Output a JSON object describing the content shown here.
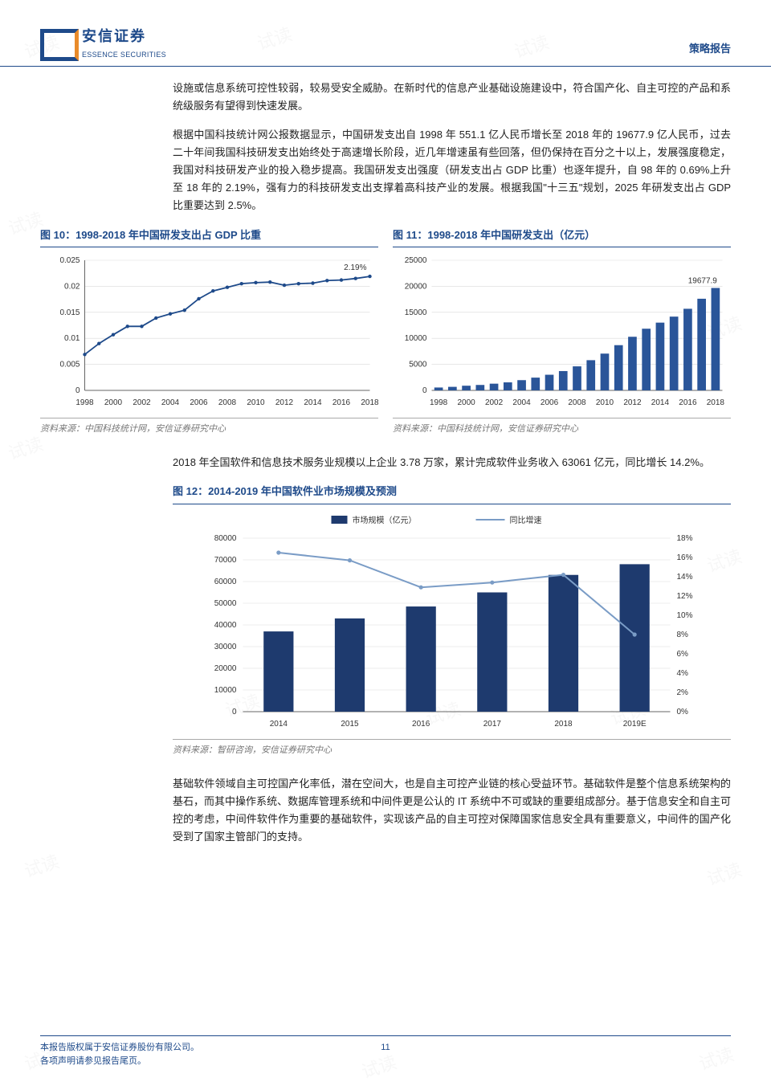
{
  "header": {
    "brand_cn": "安信证券",
    "brand_en": "ESSENCE SECURITIES",
    "doc_type": "策略报告"
  },
  "paragraphs": {
    "p1": "设施或信息系统可控性较弱，较易受安全威胁。在新时代的信息产业基础设施建设中，符合国产化、自主可控的产品和系统级服务有望得到快速发展。",
    "p2": "根据中国科技统计网公报数据显示，中国研发支出自 1998 年 551.1 亿人民币增长至 2018 年的 19677.9 亿人民币，过去二十年间我国科技研发支出始终处于高速增长阶段，近几年增速虽有些回落，但仍保持在百分之十以上，发展强度稳定，我国对科技研发产业的投入稳步提高。我国研发支出强度（研发支出占 GDP 比重）也逐年提升，自 98 年的 0.69%上升至 18 年的 2.19%，强有力的科技研发支出支撑着高科技产业的发展。根据我国\"十三五\"规划，2025 年研发支出占 GDP 比重要达到 2.5%。",
    "p3": "2018 年全国软件和信息技术服务业规模以上企业 3.78 万家，累计完成软件业务收入 63061 亿元，同比增长 14.2%。",
    "p4": "基础软件领域自主可控国产化率低，潜在空间大，也是自主可控产业链的核心受益环节。基础软件是整个信息系统架构的基石，而其中操作系统、数据库管理系统和中间件更是公认的 IT 系统中不可或缺的重要组成部分。基于信息安全和自主可控的考虑，中间件软件作为重要的基础软件，实现该产品的自主可控对保障国家信息安全具有重要意义，中间件的国产化受到了国家主管部门的支持。"
  },
  "chart10": {
    "title": "图 10：1998-2018 年中国研发支出占 GDP 比重",
    "type": "line",
    "x_labels": [
      "1998",
      "2000",
      "2002",
      "2004",
      "2006",
      "2008",
      "2010",
      "2012",
      "2014",
      "2016",
      "2018"
    ],
    "y_ticks": [
      0,
      0.005,
      0.01,
      0.015,
      0.02,
      0.025
    ],
    "y_tick_labels": [
      "0",
      "0.005",
      "0.01",
      "0.015",
      "0.02",
      "0.025"
    ],
    "values": [
      0.0069,
      0.009,
      0.0107,
      0.0123,
      0.0123,
      0.0139,
      0.0147,
      0.0154,
      0.0176,
      0.0191,
      0.0198,
      0.0205,
      0.0207,
      0.0208,
      0.0202,
      0.0205,
      0.0206,
      0.0211,
      0.0212,
      0.0215,
      0.0219
    ],
    "callout_label": "2.19%",
    "line_color": "#1e4a8a",
    "axis_color": "#666666",
    "grid_color": "#d9d9d9",
    "background": "#ffffff",
    "font_size": 10,
    "source": "资料来源：中国科技统计网，安信证券研究中心"
  },
  "chart11": {
    "title": "图 11：1998-2018 年中国研发支出（亿元）",
    "type": "bar",
    "x_labels": [
      "1998",
      "2000",
      "2002",
      "2004",
      "2006",
      "2008",
      "2010",
      "2012",
      "2014",
      "2016",
      "2018"
    ],
    "y_ticks": [
      0,
      5000,
      10000,
      15000,
      20000,
      25000
    ],
    "values": [
      551,
      679,
      896,
      1043,
      1288,
      1540,
      1966,
      2450,
      3003,
      3710,
      4616,
      5802,
      7063,
      8687,
      10298,
      11847,
      13016,
      14170,
      15677,
      17606,
      19678
    ],
    "callout_label": "19677.9",
    "bar_color": "#2a5599",
    "axis_color": "#666666",
    "grid_color": "#d9d9d9",
    "background": "#ffffff",
    "font_size": 10,
    "source": "资料来源：中国科技统计网，安信证券研究中心"
  },
  "chart12": {
    "title": "图 12：2014-2019 年中国软件业市场规模及预测",
    "type": "combo",
    "legend": {
      "bar": "市场规模（亿元）",
      "line": "同比增速"
    },
    "categories": [
      "2014",
      "2015",
      "2016",
      "2017",
      "2018",
      "2019E"
    ],
    "bar_values": [
      37000,
      43000,
      48500,
      55000,
      63061,
      68000
    ],
    "line_values_pct": [
      16.5,
      15.7,
      12.9,
      13.4,
      14.2,
      8.0
    ],
    "left_y_ticks": [
      0,
      10000,
      20000,
      30000,
      40000,
      50000,
      60000,
      70000,
      80000
    ],
    "right_y_ticks_pct": [
      0,
      2,
      4,
      6,
      8,
      10,
      12,
      14,
      16,
      18
    ],
    "bar_color": "#1e3a6e",
    "line_color": "#7a9cc6",
    "axis_color": "#666666",
    "grid_color": "#d9d9d9",
    "background": "#ffffff",
    "legend_font_size": 10,
    "axis_font_size": 10,
    "source": "资料来源：智研咨询，安信证券研究中心"
  },
  "footer": {
    "line1": "本报告版权属于安信证券股份有限公司。",
    "line2": "各项声明请参见报告尾页。",
    "page_number": "11"
  },
  "watermark_text": "试读"
}
